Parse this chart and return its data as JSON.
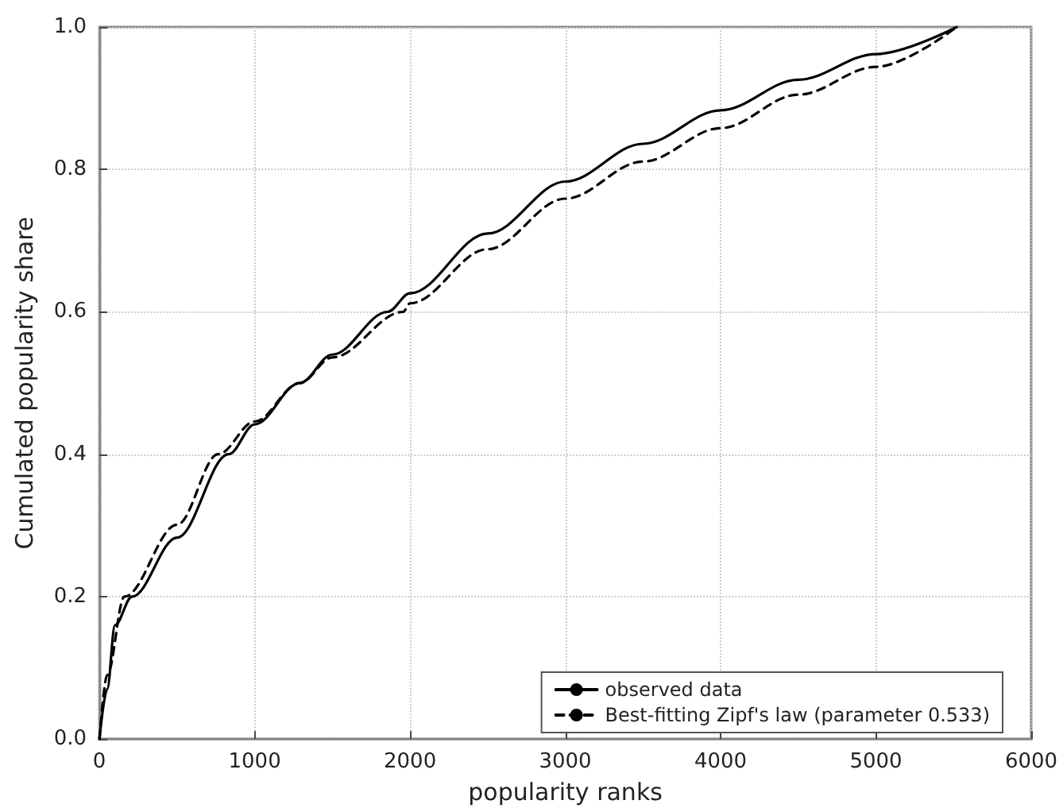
{
  "chart_data": {
    "type": "line",
    "xlabel": "popularity ranks",
    "ylabel": "Cumulated popularity share",
    "xlim": [
      0,
      6000
    ],
    "xticks": [
      0,
      1000,
      2000,
      3000,
      4000,
      5000,
      6000
    ],
    "ylim": [
      0,
      1
    ],
    "yticks": [
      {
        "value": 0,
        "label": "0.0"
      },
      {
        "value": 0.2,
        "label": "0.2"
      },
      {
        "value": 0.4,
        "label": "0.4"
      },
      {
        "value": 0.6,
        "label": "0.6"
      },
      {
        "value": 0.8,
        "label": "0.8"
      },
      {
        "value": 1,
        "label": "1.0"
      }
    ],
    "grid": true,
    "legend": "bottom right",
    "marker": "none",
    "series": [
      {
        "name": "observed data",
        "color": "#000000",
        "line_style": "solid",
        "x": [
          0,
          50,
          100,
          210,
          500,
          832,
          1000,
          1290,
          1500,
          1856,
          2000,
          2500,
          3000,
          3500,
          4000,
          4500,
          5000,
          5520
        ],
        "values": [
          0,
          0.07,
          0.16,
          0.2,
          0.283,
          0.4,
          0.442,
          0.5,
          0.54,
          0.6,
          0.626,
          0.71,
          0.783,
          0.836,
          0.883,
          0.926,
          0.962,
          1
        ]
      },
      {
        "name": "Best-fitting Zipf's law (parameter 0.533)",
        "color": "#000000",
        "line_style": "dashed",
        "x": [
          0,
          50,
          161,
          500,
          765,
          1000,
          1290,
          1500,
          1956,
          2000,
          2500,
          3000,
          3500,
          4000,
          4500,
          5000,
          5520
        ],
        "values": [
          0,
          0.09,
          0.2,
          0.301,
          0.4,
          0.446,
          0.5,
          0.536,
          0.6,
          0.612,
          0.688,
          0.759,
          0.811,
          0.858,
          0.905,
          0.944,
          1
        ]
      }
    ]
  }
}
